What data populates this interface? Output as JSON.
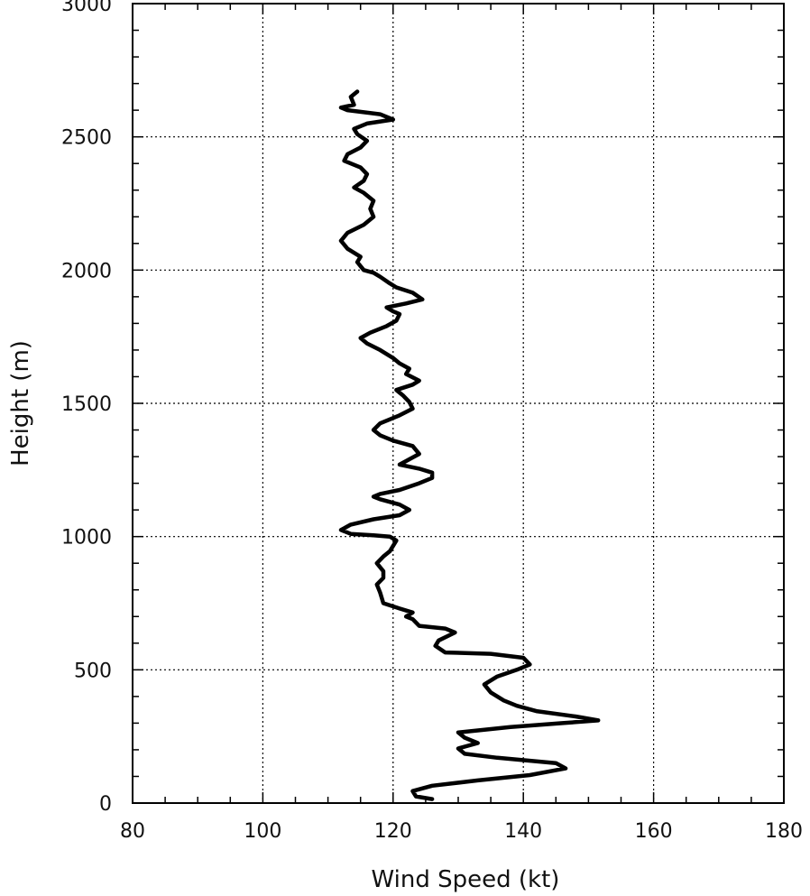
{
  "chart_data": {
    "type": "line",
    "xlabel": "Wind Speed (kt)",
    "ylabel": "Height (m)",
    "xlim": [
      80,
      180
    ],
    "ylim": [
      0,
      3000
    ],
    "x_ticks": [
      "80",
      "100",
      "120",
      "140",
      "160",
      "180"
    ],
    "y_ticks": [
      "0",
      "500",
      "1000",
      "1500",
      "2000",
      "2500",
      "3000"
    ],
    "grid": true,
    "series": [
      {
        "color": "#000000",
        "points": [
          [
            126,
            15
          ],
          [
            123.5,
            25
          ],
          [
            123,
            45
          ],
          [
            126,
            65
          ],
          [
            133,
            85
          ],
          [
            141,
            105
          ],
          [
            146.5,
            130
          ],
          [
            145,
            150
          ],
          [
            136,
            170
          ],
          [
            131,
            185
          ],
          [
            130,
            205
          ],
          [
            133,
            225
          ],
          [
            131,
            245
          ],
          [
            130,
            265
          ],
          [
            138,
            285
          ],
          [
            146,
            300
          ],
          [
            151.5,
            310
          ],
          [
            148,
            325
          ],
          [
            142,
            345
          ],
          [
            139,
            365
          ],
          [
            137,
            385
          ],
          [
            135,
            415
          ],
          [
            134,
            445
          ],
          [
            136,
            475
          ],
          [
            139,
            500
          ],
          [
            141,
            520
          ],
          [
            140,
            545
          ],
          [
            135,
            560
          ],
          [
            128,
            565
          ],
          [
            126.5,
            590
          ],
          [
            127,
            610
          ],
          [
            129.5,
            640
          ],
          [
            128,
            655
          ],
          [
            124,
            665
          ],
          [
            123,
            690
          ],
          [
            122,
            700
          ],
          [
            123,
            715
          ],
          [
            121,
            730
          ],
          [
            118.5,
            750
          ],
          [
            118,
            790
          ],
          [
            117.5,
            820
          ],
          [
            118.5,
            845
          ],
          [
            118.5,
            870
          ],
          [
            117.5,
            900
          ],
          [
            118.5,
            925
          ],
          [
            119.5,
            945
          ],
          [
            120.5,
            985
          ],
          [
            119.5,
            1000
          ],
          [
            117,
            1005
          ],
          [
            113.5,
            1010
          ],
          [
            112,
            1025
          ],
          [
            113.5,
            1045
          ],
          [
            117,
            1065
          ],
          [
            121,
            1080
          ],
          [
            122.5,
            1100
          ],
          [
            121,
            1120
          ],
          [
            118,
            1140
          ],
          [
            117,
            1150
          ],
          [
            118,
            1160
          ],
          [
            121,
            1175
          ],
          [
            124,
            1200
          ],
          [
            126,
            1220
          ],
          [
            126,
            1240
          ],
          [
            124,
            1255
          ],
          [
            121,
            1270
          ],
          [
            122.5,
            1290
          ],
          [
            124,
            1310
          ],
          [
            123,
            1340
          ],
          [
            120,
            1360
          ],
          [
            118,
            1380
          ],
          [
            117,
            1400
          ],
          [
            118,
            1425
          ],
          [
            121,
            1455
          ],
          [
            123,
            1480
          ],
          [
            122.5,
            1505
          ],
          [
            121.5,
            1530
          ],
          [
            120.5,
            1550
          ],
          [
            123,
            1570
          ],
          [
            124,
            1585
          ],
          [
            122,
            1610
          ],
          [
            122.5,
            1630
          ],
          [
            121,
            1650
          ],
          [
            120,
            1670
          ],
          [
            118,
            1700
          ],
          [
            116,
            1725
          ],
          [
            115,
            1745
          ],
          [
            116.5,
            1765
          ],
          [
            119,
            1790
          ],
          [
            120.5,
            1810
          ],
          [
            121,
            1835
          ],
          [
            120,
            1845
          ],
          [
            119,
            1860
          ],
          [
            122,
            1875
          ],
          [
            124.5,
            1890
          ],
          [
            123,
            1915
          ],
          [
            120.5,
            1935
          ],
          [
            119.5,
            1950
          ],
          [
            118,
            1975
          ],
          [
            117,
            1990
          ],
          [
            115.5,
            2000
          ],
          [
            115,
            2015
          ],
          [
            114.5,
            2030
          ],
          [
            115,
            2050
          ],
          [
            113,
            2080
          ],
          [
            112,
            2110
          ],
          [
            113,
            2140
          ],
          [
            115.5,
            2170
          ],
          [
            117,
            2200
          ],
          [
            116.5,
            2230
          ],
          [
            117,
            2260
          ],
          [
            115.5,
            2290
          ],
          [
            114,
            2310
          ],
          [
            115.5,
            2335
          ],
          [
            116,
            2360
          ],
          [
            115,
            2385
          ],
          [
            112.5,
            2410
          ],
          [
            113,
            2435
          ],
          [
            115,
            2460
          ],
          [
            116,
            2485
          ],
          [
            114.5,
            2510
          ],
          [
            114,
            2530
          ],
          [
            116,
            2550
          ],
          [
            120,
            2565
          ],
          [
            118,
            2585
          ],
          [
            113,
            2600
          ],
          [
            112,
            2610
          ],
          [
            114,
            2620
          ],
          [
            113.5,
            2650
          ],
          [
            114.5,
            2670
          ]
        ]
      }
    ]
  }
}
